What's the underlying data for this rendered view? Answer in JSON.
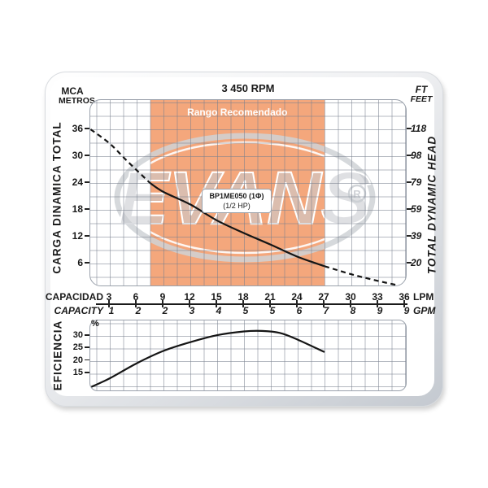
{
  "header": {
    "left_unit_line1": "MCA",
    "left_unit_line2": "METROS",
    "title": "3 450 RPM",
    "right_unit_line1": "FT",
    "right_unit_line2": "FEET"
  },
  "watermark": {
    "brand": "EVANS",
    "registered": "®"
  },
  "main_chart": {
    "left_axis_label": "CARGA DINAMICA TOTAL",
    "right_axis_label": "TOTAL DYNAMIC HEAD",
    "band_label": "Rango Recomendado",
    "band_color": "#f4a77c",
    "pump_label_line1": "BP1ME050 (1Φ)",
    "pump_label_line2": "(1/2 HP)"
  },
  "x_axis": {
    "row1_label": "CAPACIDAD",
    "row1_unit": "LPM",
    "row2_label": "CAPACITY",
    "row2_unit": "GPM"
  },
  "efficiency_chart": {
    "axis_label": "EFICIENCIA",
    "unit": "%"
  },
  "chart_data": [
    {
      "type": "line",
      "name": "head_capacity_curve",
      "title": "3 450 RPM",
      "series_label": "BP1ME050 (1Φ) (1/2 HP)",
      "x_unit": "LPM",
      "y_unit": "m",
      "x": [
        0.85,
        3,
        5,
        7.5,
        9,
        12,
        15,
        18,
        21,
        24,
        27,
        30,
        33,
        36
      ],
      "y": [
        36,
        32.8,
        28.8,
        24,
        22,
        19.2,
        15.6,
        12.8,
        10.2,
        7.5,
        5.4,
        3.6,
        2.1,
        0.8
      ],
      "solid_range_lpm": [
        7.5,
        27
      ],
      "recommended_band_lpm": [
        7.5,
        27
      ],
      "xlim": [
        0.8,
        36.4
      ],
      "ylim": [
        0.7,
        42.5
      ],
      "x_ticks_lpm": [
        3,
        6,
        9,
        12,
        15,
        18,
        21,
        24,
        27,
        30,
        33,
        36
      ],
      "x_ticks_gpm": [
        1,
        2,
        2,
        3,
        4,
        5,
        5,
        6,
        7,
        8,
        9,
        9
      ],
      "y_ticks_m": [
        36,
        30,
        24,
        18,
        12,
        6
      ],
      "y_ticks_ft": [
        118,
        98,
        79,
        59,
        39,
        20
      ],
      "grid": true,
      "legend_position": "none"
    },
    {
      "type": "line",
      "name": "efficiency_curve",
      "x_unit": "LPM",
      "y_unit": "%",
      "x": [
        0.9,
        3,
        6,
        9,
        12,
        15,
        18,
        20,
        22,
        24,
        27
      ],
      "y": [
        9.5,
        13,
        19,
        24,
        27.5,
        30.3,
        31.8,
        32,
        31.2,
        28.5,
        23.5
      ],
      "y_ticks": [
        30,
        25,
        20,
        15
      ],
      "ylim": [
        8.5,
        35.5
      ],
      "grid": true,
      "legend_position": "none"
    }
  ]
}
